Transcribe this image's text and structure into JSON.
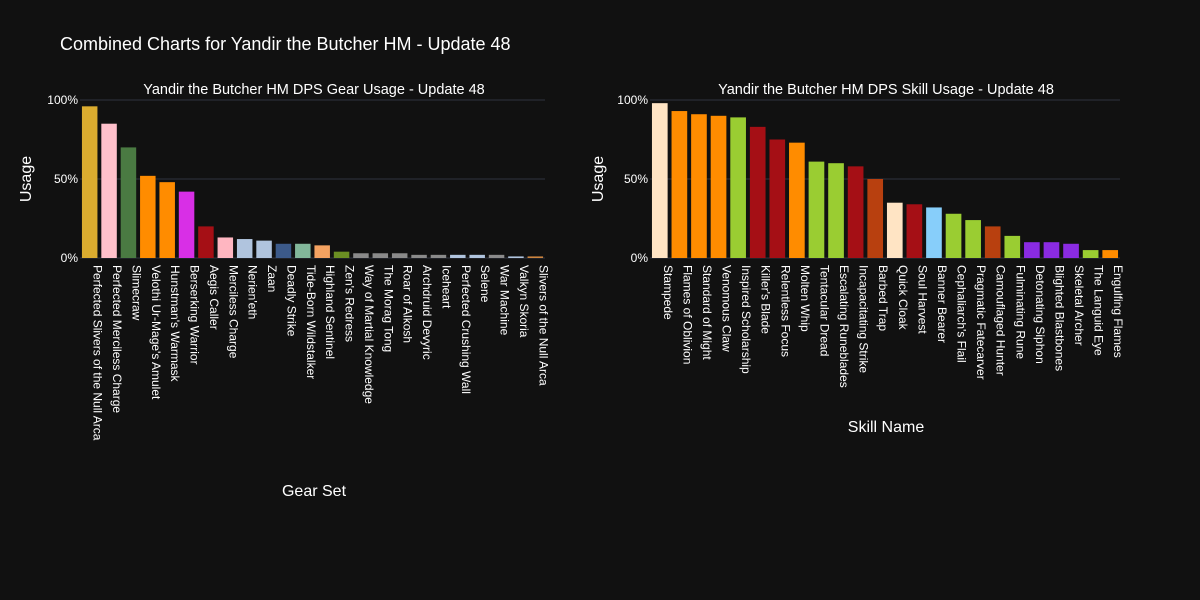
{
  "title": "Combined Charts for Yandir the Butcher HM - Update 48",
  "chart_data": [
    {
      "type": "bar",
      "title": "Yandir the Butcher HM DPS Gear Usage - Update 48",
      "xlabel": "Gear Set",
      "ylabel": "Usage",
      "ylim": [
        0,
        100
      ],
      "yticks": [
        "0%",
        "50%",
        "100%"
      ],
      "grid": true,
      "categories": [
        "Perfected Slivers of the Null Arca",
        "Perfected Merciless Charge",
        "Slimecraw",
        "Velothi Ur-Mage's Amulet",
        "Hunstman's Warmask",
        "Berserking Warrior",
        "Aegis Caller",
        "Merciless Charge",
        "Nerien'eth",
        "Zaan",
        "Deadly Strike",
        "Tide-Born Wildstalker",
        "Highland Sentinel",
        "Zen's Redress",
        "Way of Martial Knowledge",
        "The Morag Tong",
        "Roar of Alkosh",
        "Archdruid Devyric",
        "Iceheart",
        "Perfected Crushing Wall",
        "Selene",
        "War Machine",
        "Valkyn Skoria",
        "Slivers of the Null Arca"
      ],
      "values": [
        96,
        85,
        70,
        52,
        48,
        42,
        20,
        13,
        12,
        11,
        9,
        9,
        8,
        4,
        3,
        3,
        3,
        2,
        2,
        2,
        2,
        2,
        1,
        1
      ],
      "colors": [
        "#dbac2f",
        "#ffc0cb",
        "#4a7a42",
        "#ff8c00",
        "#ff8c00",
        "#d82fe6",
        "#a50f15",
        "#ffb6c1",
        "#b0c4de",
        "#b0c4de",
        "#3c5a8a",
        "#82b79a",
        "#f4a261",
        "#6b8e23",
        "#8a8a8a",
        "#8a8a8a",
        "#8a8a8a",
        "#8a8a8a",
        "#8a8a8a",
        "#b0c4de",
        "#b0c4de",
        "#8a8a8a",
        "#b0c4de",
        "#cd853f"
      ]
    },
    {
      "type": "bar",
      "title": "Yandir the Butcher HM DPS Skill Usage - Update 48",
      "xlabel": "Skill Name",
      "ylabel": "Usage",
      "ylim": [
        0,
        100
      ],
      "yticks": [
        "0%",
        "50%",
        "100%"
      ],
      "grid": true,
      "categories": [
        "Stampede",
        "Flames of Oblivion",
        "Standard of Might",
        "Venomous Claw",
        "Inspired Scholarship",
        "Killer's Blade",
        "Relentless Focus",
        "Molten Whip",
        "Tentacular Dread",
        "Escalating Runeblades",
        "Incapacitating Strike",
        "Barbed Trap",
        "Quick Cloak",
        "Soul Harvest",
        "Banner Bearer",
        "Cephaliarch's Flail",
        "Pragmatic Fatecarver",
        "Camouflaged Hunter",
        "Fulminating Rune",
        "Detonating Siphon",
        "Blighted Blastbones",
        "Skeletal Archer",
        "The Languid Eye",
        "Engulfing Flames"
      ],
      "values": [
        98,
        93,
        91,
        90,
        89,
        83,
        75,
        73,
        61,
        60,
        58,
        50,
        35,
        34,
        32,
        28,
        24,
        20,
        14,
        10,
        10,
        9,
        5,
        5
      ],
      "colors": [
        "#ffe4c4",
        "#ff8c00",
        "#ff8c00",
        "#ff8c00",
        "#9acd32",
        "#a50f15",
        "#a50f15",
        "#ff8c00",
        "#9acd32",
        "#9acd32",
        "#a50f15",
        "#b8400f",
        "#ffe4c4",
        "#a50f15",
        "#87cefa",
        "#9acd32",
        "#9acd32",
        "#b8400f",
        "#9acd32",
        "#8a2be2",
        "#8a2be2",
        "#8a2be2",
        "#9acd32",
        "#ff8c00"
      ]
    }
  ]
}
